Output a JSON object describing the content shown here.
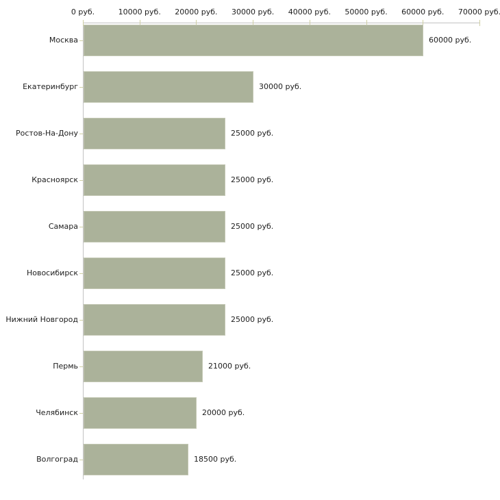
{
  "chart_data": {
    "type": "bar",
    "orientation": "horizontal",
    "title": "",
    "unit": "руб.",
    "categories": [
      "Москва",
      "Екатеринбург",
      "Ростов-На-Дону",
      "Красноярск",
      "Самара",
      "Новосибирск",
      "Нижний Новгород",
      "Пермь",
      "Челябинск",
      "Волгоград"
    ],
    "values": [
      60000,
      30000,
      25000,
      25000,
      25000,
      25000,
      25000,
      21000,
      20000,
      18500
    ],
    "value_labels": [
      "60000 руб.",
      "30000 руб.",
      "25000 руб.",
      "25000 руб.",
      "25000 руб.",
      "25000 руб.",
      "25000 руб.",
      "21000 руб.",
      "20000 руб.",
      "18500 руб."
    ],
    "x_axis": {
      "position": "top",
      "min": 0,
      "max": 70000,
      "ticks": [
        0,
        10000,
        20000,
        30000,
        40000,
        50000,
        60000,
        70000
      ],
      "tick_labels": [
        "0 руб.",
        "10000 руб.",
        "20000 руб.",
        "30000 руб.",
        "40000 руб.",
        "50000 руб.",
        "60000 руб.",
        "70000 руб."
      ]
    },
    "grid": false,
    "legend": false,
    "colors": {
      "bar_fill": "#abb29a",
      "bar_border": "#c3c7b3",
      "axis_line": "#c2c2c2",
      "tick_mark": "#cfcfa3",
      "text": "#1c1c1c",
      "background": "#ffffff"
    }
  }
}
